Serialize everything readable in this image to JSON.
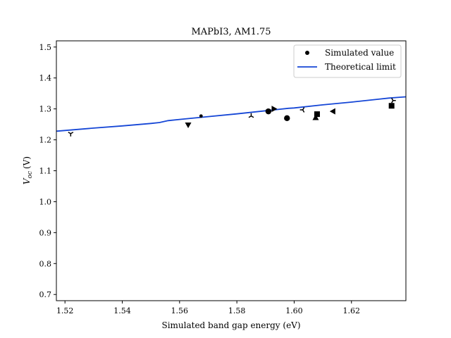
{
  "chart_data": {
    "type": "scatter",
    "title": "MAPbI3, AM1.75",
    "xlabel": "Simulated band gap energy (eV)",
    "ylabel_main": "V",
    "ylabel_sub": "oc",
    "ylabel_unit": "(V)",
    "xlim": [
      1.517,
      1.639
    ],
    "ylim": [
      0.68,
      1.52
    ],
    "x_ticks": [
      1.52,
      1.54,
      1.56,
      1.58,
      1.6,
      1.62
    ],
    "x_tick_labels": [
      "1.52",
      "1.54",
      "1.56",
      "1.58",
      "1.60",
      "1.62"
    ],
    "y_ticks": [
      0.7,
      0.8,
      0.9,
      1.0,
      1.1,
      1.2,
      1.3,
      1.4,
      1.5
    ],
    "y_tick_labels": [
      "0.7",
      "0.8",
      "0.9",
      "1.0",
      "1.1",
      "1.2",
      "1.3",
      "1.4",
      "1.5"
    ],
    "grid": false,
    "legend_position": "top-right",
    "series": [
      {
        "name": "Simulated value",
        "color": "#000000",
        "points": [
          {
            "x": 1.522,
            "y": 1.22,
            "marker": "tri_down"
          },
          {
            "x": 1.563,
            "y": 1.248,
            "marker": "triangle_down"
          },
          {
            "x": 1.5675,
            "y": 1.277,
            "marker": "point"
          },
          {
            "x": 1.585,
            "y": 1.277,
            "marker": "tri_up"
          },
          {
            "x": 1.591,
            "y": 1.292,
            "marker": "circle"
          },
          {
            "x": 1.593,
            "y": 1.3,
            "marker": "triangle_right"
          },
          {
            "x": 1.5975,
            "y": 1.27,
            "marker": "circle"
          },
          {
            "x": 1.603,
            "y": 1.297,
            "marker": "tri_left"
          },
          {
            "x": 1.6075,
            "y": 1.272,
            "marker": "triangle_up"
          },
          {
            "x": 1.608,
            "y": 1.283,
            "marker": "square"
          },
          {
            "x": 1.6135,
            "y": 1.292,
            "marker": "triangle_left"
          },
          {
            "x": 1.634,
            "y": 1.31,
            "marker": "square"
          },
          {
            "x": 1.6345,
            "y": 1.327,
            "marker": "tri_right"
          }
        ]
      },
      {
        "name": "Theoretical limit",
        "color": "#1546d6",
        "line": {
          "x": [
            1.517,
            1.53,
            1.54,
            1.55,
            1.553,
            1.556,
            1.56,
            1.57,
            1.58,
            1.59,
            1.595,
            1.598,
            1.6,
            1.61,
            1.62,
            1.63,
            1.633,
            1.636,
            1.639
          ],
          "y": [
            1.228,
            1.238,
            1.245,
            1.253,
            1.256,
            1.262,
            1.266,
            1.275,
            1.284,
            1.294,
            1.299,
            1.302,
            1.303,
            1.313,
            1.322,
            1.332,
            1.335,
            1.337,
            1.339
          ]
        }
      }
    ]
  }
}
